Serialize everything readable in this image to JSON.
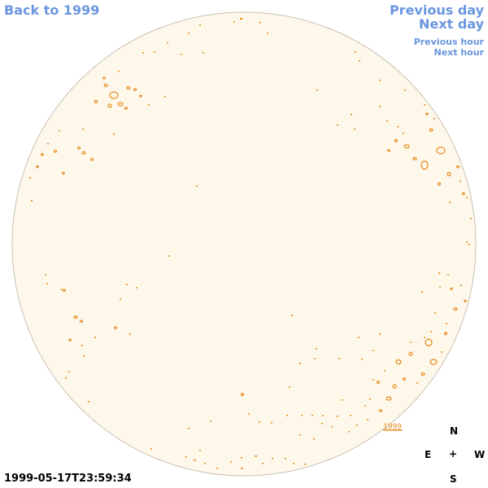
{
  "nav": {
    "back_label": "Back to 1999",
    "prev_day_label": "Previous day",
    "next_day_label": "Next day",
    "prev_hour_label": "Previous hour",
    "next_hour_label": "Next hour"
  },
  "timestamp": "1999-05-17T23:59:34",
  "year_tag": "1999",
  "compass": {
    "n": "N",
    "e": "E",
    "center": "+",
    "w": "W",
    "s": "S"
  },
  "colors": {
    "link": "#6a96e0",
    "disk_fill": "#fdf8ea",
    "disk_outline": "#c8c2b0",
    "contour": "#e8891a"
  }
}
